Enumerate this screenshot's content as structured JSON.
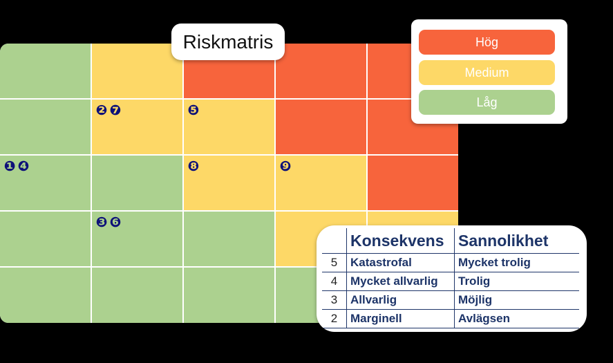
{
  "title": "Riskmatris",
  "colors": {
    "green": "#acd18f",
    "yellow": "#fdd867",
    "red": "#f7643c",
    "marker": "#0d1079",
    "text": "#1d3468"
  },
  "matrix": {
    "rows": [
      [
        "green",
        "yellow",
        "red",
        "red",
        "red"
      ],
      [
        "green",
        "yellow",
        "yellow",
        "red",
        "red"
      ],
      [
        "green",
        "green",
        "yellow",
        "yellow",
        "red"
      ],
      [
        "green",
        "green",
        "green",
        "yellow",
        "yellow"
      ],
      [
        "green",
        "green",
        "green",
        "green",
        "yellow"
      ]
    ],
    "markers": [
      {
        "row": 1,
        "col": 1,
        "items": [
          "❷",
          "❼"
        ]
      },
      {
        "row": 1,
        "col": 2,
        "items": [
          "❺"
        ]
      },
      {
        "row": 2,
        "col": 0,
        "items": [
          "❶",
          "❹"
        ]
      },
      {
        "row": 2,
        "col": 2,
        "items": [
          "❽"
        ]
      },
      {
        "row": 2,
        "col": 3,
        "items": [
          "❾"
        ]
      },
      {
        "row": 3,
        "col": 1,
        "items": [
          "❸",
          "❻"
        ]
      }
    ]
  },
  "legend": {
    "items": [
      {
        "label": "Hög",
        "color": "#f7643c"
      },
      {
        "label": "Medium",
        "color": "#fdd867"
      },
      {
        "label": "Låg",
        "color": "#acd18f"
      }
    ]
  },
  "table": {
    "headers": [
      "",
      "Konsekvens",
      "Sannolikhet"
    ],
    "rows": [
      [
        "5",
        "Katastrofal",
        "Mycket trolig"
      ],
      [
        "4",
        "Mycket allvarlig",
        "Trolig"
      ],
      [
        "3",
        "Allvarlig",
        "Möjlig"
      ],
      [
        "2",
        "Marginell",
        "Avlägsen"
      ]
    ]
  }
}
